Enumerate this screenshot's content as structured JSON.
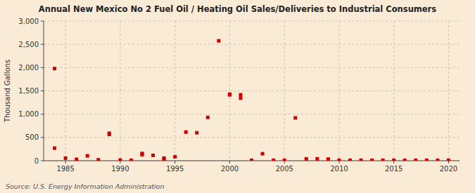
{
  "chart_data": {
    "type": "scatter",
    "title": "Annual New Mexico No 2 Fuel Oil / Heating Oil Sales/Deliveries to Industrial Consumers",
    "y_label": "Thousand Gallons",
    "source": "Source: U.S. Energy Information Administration",
    "color": "#cc0000",
    "marker": "square",
    "grid": true,
    "xlim": [
      1983,
      2021
    ],
    "ylim": [
      0,
      3000
    ],
    "xticks": [
      1985,
      1990,
      1995,
      2000,
      2005,
      2010,
      2015,
      2020
    ],
    "yticks": [
      0,
      500,
      {
        "value": 1000,
        "label": "1,000"
      },
      {
        "value": 1500,
        "label": "1,500"
      },
      {
        "value": 2000,
        "label": "2,000"
      },
      {
        "value": 2500,
        "label": "2,500"
      },
      {
        "value": 3000,
        "label": "3,000"
      }
    ],
    "x": [
      1984,
      1984,
      1985,
      1986,
      1987,
      1988,
      1989,
      1989,
      1990,
      1991,
      1992,
      1992,
      1993,
      1994,
      1994,
      1995,
      1996,
      1997,
      1998,
      1999,
      2000,
      2000,
      2001,
      2001,
      2002,
      2003,
      2004,
      2005,
      2006,
      2007,
      2008,
      2009,
      2010,
      2011,
      2012,
      2013,
      2014,
      2015,
      2016,
      2017,
      2018,
      2019,
      2020
    ],
    "values": [
      1980,
      270,
      55,
      30,
      105,
      20,
      590,
      565,
      15,
      10,
      155,
      130,
      115,
      25,
      55,
      85,
      615,
      600,
      930,
      2575,
      1415,
      1430,
      1415,
      1345,
      10,
      150,
      10,
      10,
      920,
      40,
      40,
      35,
      10,
      10,
      10,
      10,
      10,
      10,
      10,
      10,
      10,
      10,
      10
    ]
  }
}
